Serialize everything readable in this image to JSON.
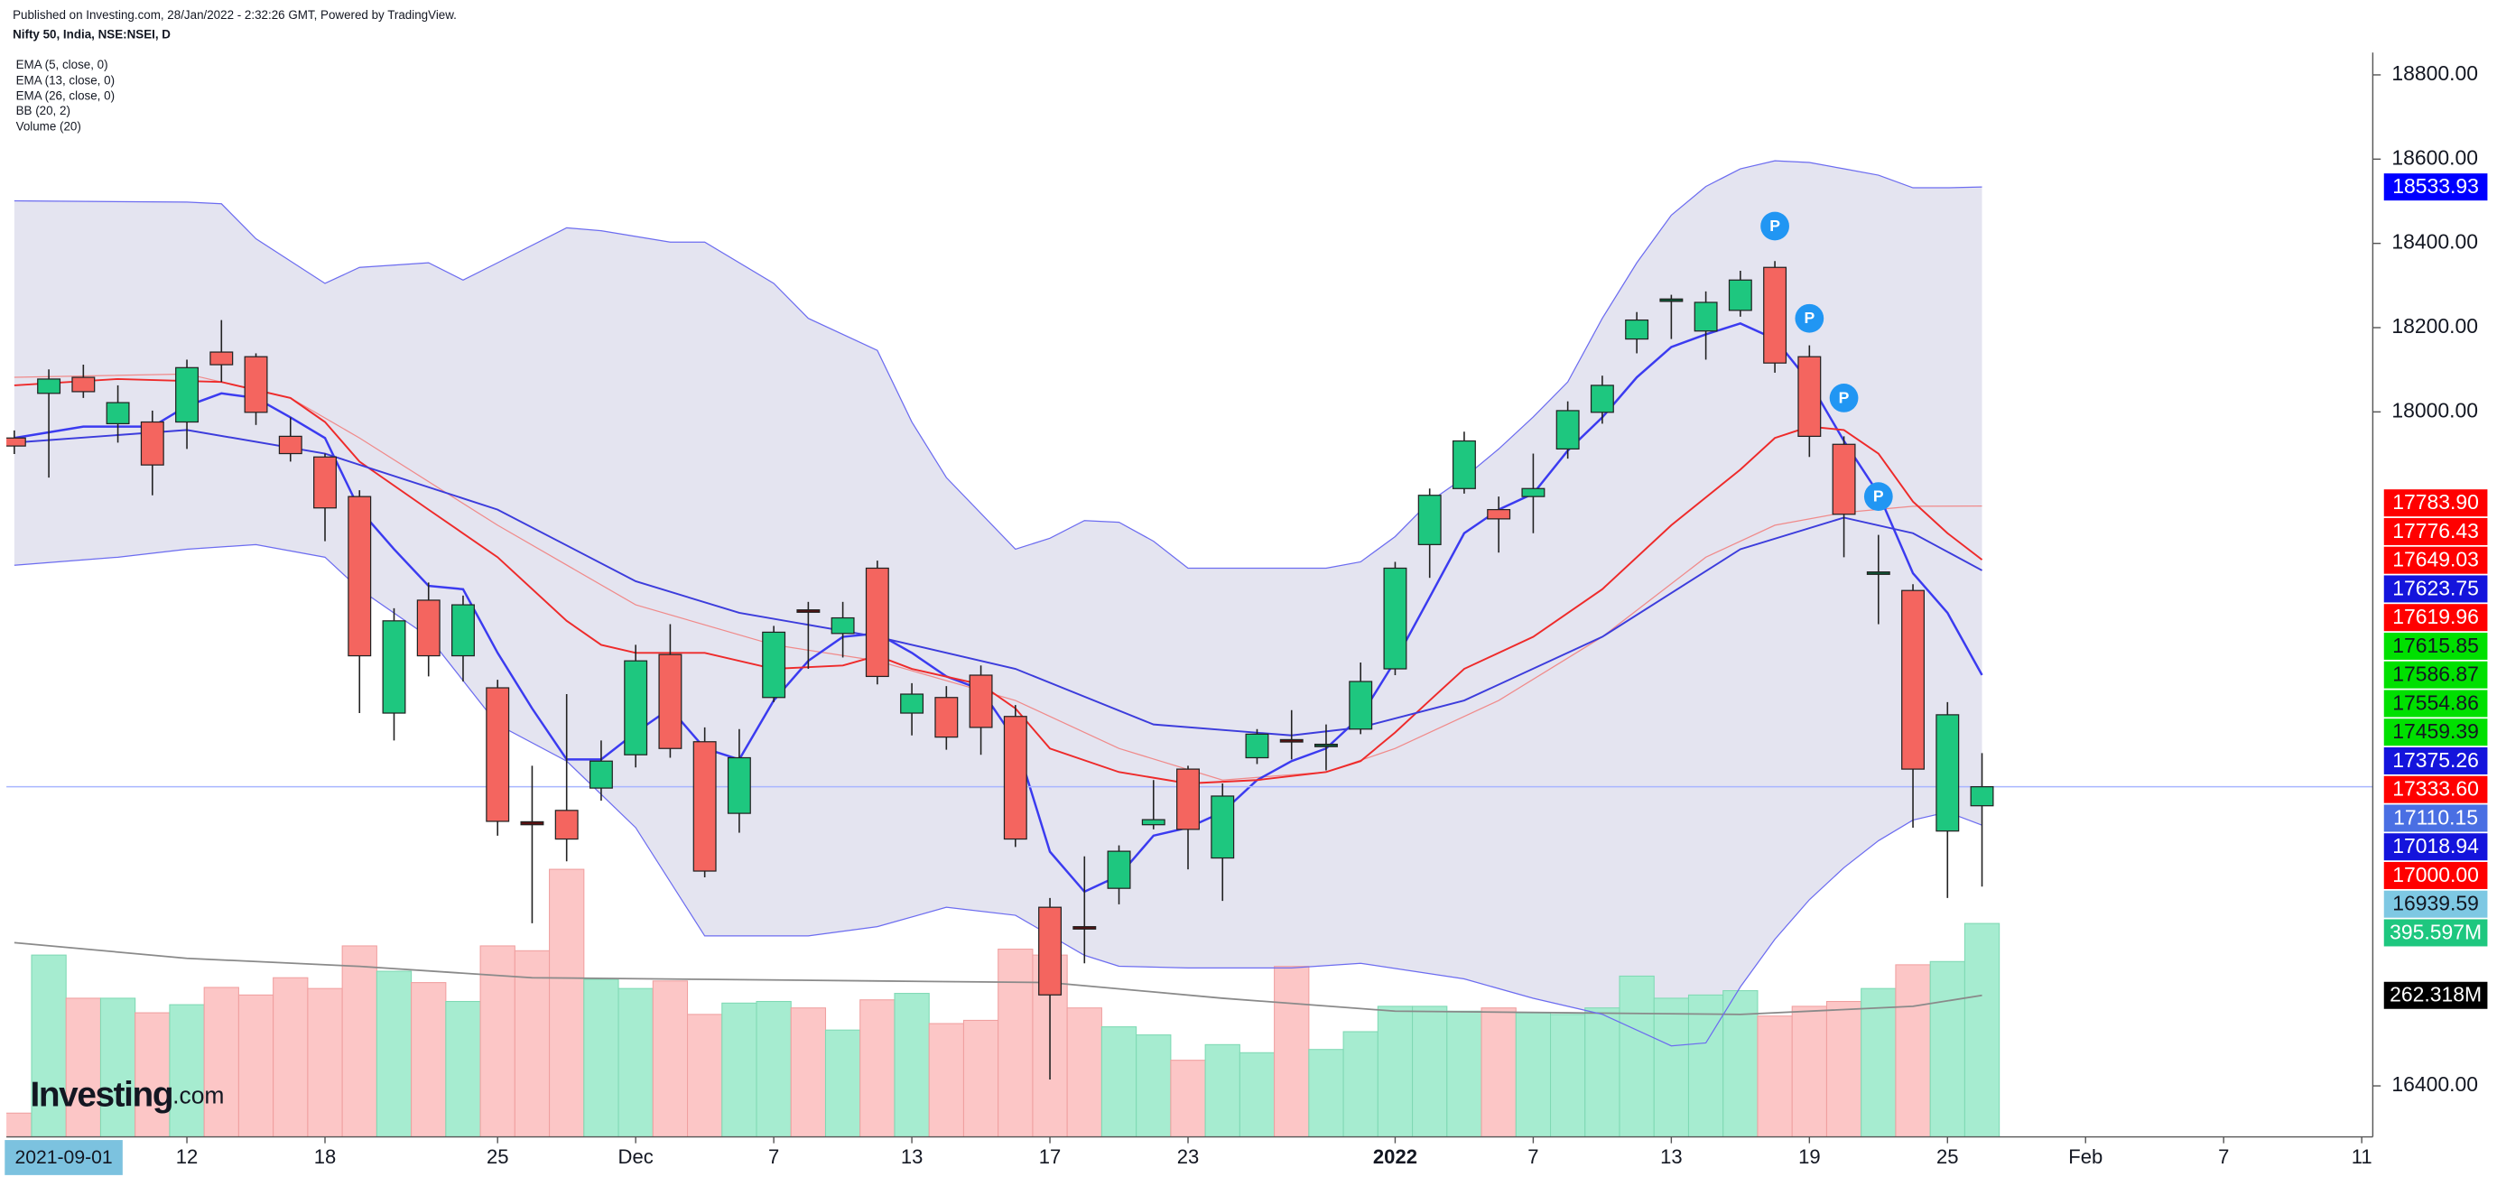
{
  "chart_data": {
    "type": "candlestick",
    "subtitle": "Published on Investing.com, 28/Jan/2022 - 2:32:26 GMT, Powered by TradingView.",
    "title": "Nifty 50, India, NSE:NSEI, D",
    "logo": {
      "name": "Investing",
      "suffix": ".com"
    },
    "range_start_label": "2021-09-01",
    "xlim": [
      -0.23,
      68.32
    ],
    "ylim": [
      16279,
      18853
    ],
    "xticks": [
      {
        "value": 5,
        "label": "12"
      },
      {
        "value": 9,
        "label": "18"
      },
      {
        "value": 14,
        "label": "25"
      },
      {
        "value": 18,
        "label": "Dec"
      },
      {
        "value": 22,
        "label": "7"
      },
      {
        "value": 26,
        "label": "13"
      },
      {
        "value": 30,
        "label": "17"
      },
      {
        "value": 34,
        "label": "23"
      },
      {
        "value": 40,
        "label": "2022"
      },
      {
        "value": 44,
        "label": "7"
      },
      {
        "value": 48,
        "label": "13"
      },
      {
        "value": 52,
        "label": "19"
      },
      {
        "value": 56,
        "label": "25"
      },
      {
        "value": 60,
        "label": "Feb"
      },
      {
        "value": 64,
        "label": "7"
      },
      {
        "value": 68,
        "label": "11"
      }
    ],
    "yticks": [
      {
        "value": 18800,
        "label": "18800.00"
      },
      {
        "value": 18600,
        "label": "18600.00"
      },
      {
        "value": 18400,
        "label": "18400.00"
      },
      {
        "value": 18200,
        "label": "18200.00"
      },
      {
        "value": 18000,
        "label": "18000.00"
      },
      {
        "value": 16400,
        "label": "16400.00"
      }
    ],
    "up_color": "#1ec77f",
    "down_color": "#f4655f",
    "open": [
      17938,
      18044,
      18082,
      17972,
      17976,
      17976,
      18142,
      18131,
      17942,
      17893,
      17799,
      17285,
      17553,
      17421,
      17345,
      17027,
      17054,
      17107,
      17186,
      17424,
      17217,
      17047,
      17322,
      17530,
      17474,
      17629,
      17285,
      17322,
      17375,
      17277,
      16824,
      16778,
      16869,
      17020,
      17152,
      16941,
      17179,
      17222,
      17207,
      17247,
      17390,
      17685,
      17818,
      17768,
      17799,
      17912,
      17999,
      18173,
      18265,
      18192,
      18241,
      18343,
      18131,
      17923,
      17617,
      17576,
      17005,
      17065
    ],
    "high": [
      17956,
      18101,
      18112,
      18063,
      18003,
      18124,
      18218,
      18139,
      17987,
      17901,
      17814,
      17534,
      17595,
      17564,
      17364,
      17160,
      17330,
      17220,
      17447,
      17496,
      17251,
      17247,
      17492,
      17549,
      17549,
      17647,
      17356,
      17349,
      17398,
      17304,
      16846,
      16945,
      16971,
      17126,
      17160,
      17118,
      17247,
      17292,
      17258,
      17405,
      17644,
      17818,
      17953,
      17799,
      17901,
      18025,
      18086,
      18237,
      18278,
      18286,
      18335,
      18358,
      18158,
      17942,
      17708,
      17591,
      17311,
      17190
    ],
    "low": [
      17900,
      17844,
      18033,
      17927,
      17802,
      17912,
      18071,
      17969,
      17882,
      17693,
      17285,
      17220,
      17372,
      17360,
      16994,
      16786,
      16933,
      17077,
      17156,
      17179,
      16895,
      17001,
      17311,
      17390,
      17417,
      17353,
      17232,
      17198,
      17186,
      16967,
      16415,
      16691,
      16831,
      17009,
      16914,
      16839,
      17164,
      17175,
      17149,
      17235,
      17375,
      17606,
      17806,
      17666,
      17712,
      17889,
      17972,
      18139,
      18173,
      18124,
      18226,
      18093,
      17893,
      17655,
      17496,
      17013,
      16846,
      16873
    ],
    "close": [
      17919,
      18078,
      18048,
      18022,
      17874,
      18105,
      18112,
      17999,
      17901,
      17772,
      17421,
      17504,
      17421,
      17542,
      17028,
      17020,
      16986,
      17171,
      17409,
      17201,
      16910,
      17179,
      17477,
      17526,
      17511,
      17372,
      17330,
      17228,
      17251,
      16986,
      16616,
      16775,
      16957,
      17032,
      17009,
      17088,
      17235,
      17220,
      17211,
      17360,
      17629,
      17802,
      17931,
      17746,
      17818,
      18003,
      18063,
      18218,
      18268,
      18260,
      18313,
      18116,
      17942,
      17757,
      17620,
      17152,
      17281,
      17110.15
    ],
    "last_line_color": "#a9b6ff",
    "indicators": [
      {
        "name": "EMA (5, close, 0)",
        "color": "#3b3bf0",
        "width": 1.4,
        "x": [
          0,
          2,
          4,
          5,
          6,
          7,
          8,
          9,
          10,
          11,
          12,
          13,
          14,
          15,
          16,
          17,
          18,
          19,
          20,
          21,
          22,
          23,
          24,
          25,
          26,
          27,
          28,
          29,
          30,
          31,
          32,
          33,
          34,
          35,
          36,
          37,
          38,
          39,
          40,
          41,
          42,
          43,
          44,
          45,
          46,
          47,
          48,
          49,
          50,
          51,
          52,
          53,
          54,
          55,
          56,
          57
        ],
        "values": [
          17938,
          17965,
          17965,
          18014,
          18044,
          18033,
          17987,
          17938,
          17768,
          17674,
          17587,
          17579,
          17428,
          17296,
          17175,
          17175,
          17239,
          17296,
          17201,
          17175,
          17315,
          17409,
          17466,
          17474,
          17428,
          17372,
          17341,
          17220,
          16956,
          16861,
          16899,
          16994,
          17013,
          17050,
          17126,
          17171,
          17201,
          17277,
          17409,
          17560,
          17712,
          17768,
          17806,
          17908,
          17987,
          18082,
          18154,
          18184,
          18210,
          18173,
          18071,
          17931,
          17806,
          17617,
          17523,
          17375.26
        ]
      },
      {
        "name": "EMA (13, close, 0)",
        "color": "#ee2a2a",
        "width": 1.1,
        "x": [
          0,
          3,
          6,
          8,
          9,
          10,
          12,
          14,
          16,
          17,
          18,
          20,
          22,
          24,
          25,
          26,
          28,
          29,
          30,
          32,
          34,
          36,
          38,
          39,
          40,
          41,
          42,
          44,
          46,
          48,
          50,
          51,
          52,
          53,
          54,
          55,
          56,
          57
        ],
        "values": [
          18063,
          18078,
          18071,
          18033,
          17976,
          17882,
          17768,
          17655,
          17504,
          17447,
          17428,
          17428,
          17390,
          17398,
          17421,
          17390,
          17353,
          17296,
          17201,
          17145,
          17118,
          17126,
          17145,
          17171,
          17239,
          17315,
          17390,
          17466,
          17579,
          17731,
          17863,
          17938,
          17965,
          17957,
          17901,
          17787,
          17712,
          17649.03
        ]
      },
      {
        "name": "EMA (26, close, 0)",
        "color": "#3c3cdc",
        "width": 1.1,
        "x": [
          0,
          5,
          9,
          14,
          18,
          21,
          25,
          29,
          33,
          37,
          39,
          42,
          46,
          50,
          53,
          55,
          57
        ],
        "values": [
          17927,
          17957,
          17901,
          17768,
          17598,
          17523,
          17466,
          17390,
          17258,
          17232,
          17251,
          17315,
          17466,
          17674,
          17749,
          17712,
          17623.75
        ]
      }
    ],
    "bollinger": {
      "name": "BB (20, 2)",
      "fill": "#e4e4f0",
      "band_color": "#6c6cf0",
      "basis_color": "#f08a8a",
      "upper": {
        "x": [
          0,
          5,
          6,
          7,
          9,
          10,
          12,
          13,
          14,
          16,
          17,
          19,
          20,
          22,
          23,
          25,
          26,
          27,
          29,
          30,
          31,
          32,
          33,
          34,
          35,
          38,
          39,
          40,
          41,
          42,
          43,
          44,
          45,
          46,
          47,
          48,
          49,
          50,
          51,
          52,
          53,
          54,
          55,
          56,
          57
        ],
        "values": [
          18501,
          18498,
          18494,
          18411,
          18305,
          18343,
          18354,
          18313,
          18354,
          18437,
          18430,
          18403,
          18403,
          18305,
          18222,
          18146,
          17976,
          17844,
          17674,
          17700,
          17742,
          17738,
          17693,
          17629,
          17629,
          17629,
          17644,
          17704,
          17787,
          17844,
          17912,
          17988,
          18071,
          18222,
          18354,
          18467,
          18535,
          18577,
          18596,
          18592,
          18577,
          18562,
          18532,
          18532,
          18533.93
        ]
      },
      "lower": {
        "x": [
          0,
          3,
          5,
          7,
          9,
          10,
          12,
          14,
          16,
          18,
          20,
          23,
          25,
          27,
          29,
          31,
          32,
          34,
          37,
          39,
          42,
          44,
          46,
          48,
          49,
          50,
          51,
          52,
          53,
          54,
          55,
          56,
          57
        ],
        "values": [
          17636,
          17655,
          17674,
          17685,
          17655,
          17579,
          17466,
          17258,
          17171,
          17013,
          16756,
          16756,
          16778,
          16824,
          16805,
          16710,
          16684,
          16680,
          16680,
          16691,
          16654,
          16608,
          16570,
          16495,
          16502,
          16635,
          16748,
          16842,
          16918,
          16982,
          17031,
          17050,
          17018.94
        ]
      },
      "basis": {
        "x": [
          0,
          5,
          8,
          10,
          14,
          18,
          22,
          25,
          29,
          32,
          35,
          38,
          40,
          43,
          46,
          49,
          51,
          53,
          55,
          57
        ],
        "values": [
          18082,
          18090,
          18033,
          17938,
          17731,
          17542,
          17447,
          17409,
          17315,
          17201,
          17126,
          17145,
          17201,
          17315,
          17466,
          17655,
          17731,
          17761,
          17776,
          17776.43
        ]
      }
    },
    "volume": {
      "name": "Volume (20)",
      "ylim": [
        0,
        2010
      ],
      "up_color": "#a6ecd0",
      "down_color": "#fcc6c6",
      "ma_color": "#8a8a8a",
      "values": [
        44,
        337,
        257,
        257,
        230,
        245,
        277,
        263,
        295,
        275,
        354,
        307,
        286,
        251,
        354,
        345,
        496,
        292,
        275,
        289,
        227,
        248,
        251,
        239,
        198,
        254,
        266,
        210,
        216,
        348,
        337,
        239,
        204,
        189,
        142,
        171,
        156,
        316,
        162,
        195,
        242,
        242,
        233,
        239,
        230,
        227,
        239,
        298,
        257,
        263,
        271,
        224,
        242,
        251,
        275,
        319,
        325,
        395.597
      ],
      "ma_x": [
        0,
        5,
        10,
        15,
        20,
        25,
        30,
        35,
        40,
        45,
        50,
        55,
        57
      ],
      "ma_values": [
        360,
        331,
        316,
        295,
        292,
        289,
        286,
        257,
        233,
        230,
        227,
        242,
        262.318
      ],
      "last_label": {
        "value": 395.597,
        "label": "395.597M",
        "color": "#1ec77f",
        "text_color": "#ffffff"
      },
      "ma_label": {
        "value": 262.318,
        "label": "262.318M",
        "color": "#000000",
        "text_color": "#ffffff"
      }
    },
    "pivots": [
      {
        "x": 51,
        "y": 18441,
        "label": "P"
      },
      {
        "x": 52,
        "y": 18222,
        "label": "P"
      },
      {
        "x": 53,
        "y": 18033,
        "label": "P"
      },
      {
        "x": 54,
        "y": 17799,
        "label": "P"
      }
    ],
    "pivot_color": "#2196f3",
    "price_labels": [
      {
        "value": 18533.93,
        "label": "18533.93",
        "color": "#0000ff",
        "text_color": "#ffffff"
      },
      {
        "value": 17783.9,
        "label": "17783.90",
        "color": "#ff0000",
        "text_color": "#ffffff"
      },
      {
        "value": 17776.43,
        "label": "17776.43",
        "color": "#ff0000",
        "text_color": "#ffffff"
      },
      {
        "value": 17649.03,
        "label": "17649.03",
        "color": "#ff0000",
        "text_color": "#ffffff"
      },
      {
        "value": 17623.75,
        "label": "17623.75",
        "color": "#1414dc",
        "text_color": "#ffffff"
      },
      {
        "value": 17619.96,
        "label": "17619.96",
        "color": "#ff0000",
        "text_color": "#ffffff"
      },
      {
        "value": 17615.85,
        "label": "17615.85",
        "color": "#00e000",
        "text_color": "#131722"
      },
      {
        "value": 17586.87,
        "label": "17586.87",
        "color": "#00e000",
        "text_color": "#131722"
      },
      {
        "value": 17554.86,
        "label": "17554.86",
        "color": "#00e000",
        "text_color": "#131722"
      },
      {
        "value": 17459.39,
        "label": "17459.39",
        "color": "#00e000",
        "text_color": "#131722"
      },
      {
        "value": 17375.26,
        "label": "17375.26",
        "color": "#1414dc",
        "text_color": "#ffffff"
      },
      {
        "value": 17333.6,
        "label": "17333.60",
        "color": "#ff0000",
        "text_color": "#ffffff"
      },
      {
        "value": 17110.15,
        "label": "17110.15",
        "color": "#4a6fe3",
        "text_color": "#ffffff"
      },
      {
        "value": 17018.94,
        "label": "17018.94",
        "color": "#1414dc",
        "text_color": "#ffffff"
      },
      {
        "value": 17000,
        "label": "17000.00",
        "color": "#ff0000",
        "text_color": "#ffffff"
      },
      {
        "value": 16939.59,
        "label": "16939.59",
        "color": "#7ec8e3",
        "text_color": "#131722"
      }
    ]
  }
}
